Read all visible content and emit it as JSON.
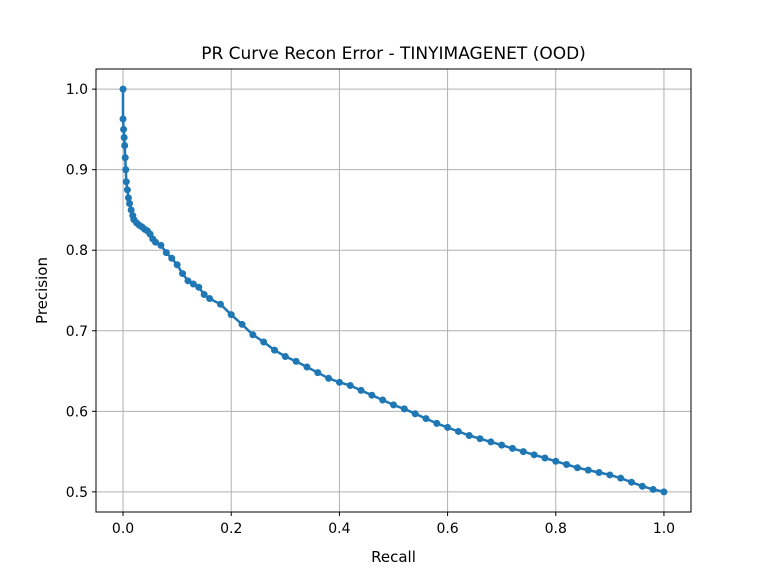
{
  "chart_data": {
    "type": "line",
    "title": "PR Curve Recon Error - TINYIMAGENET (OOD)",
    "xlabel": "Recall",
    "ylabel": "Precision",
    "xlim": [
      -0.05,
      1.05
    ],
    "ylim": [
      0.475,
      1.025
    ],
    "xticks": [
      0.0,
      0.2,
      0.4,
      0.6,
      0.8,
      1.0
    ],
    "xtick_labels": [
      "0.0",
      "0.2",
      "0.4",
      "0.6",
      "0.8",
      "1.0"
    ],
    "yticks": [
      0.5,
      0.6,
      0.7,
      0.8,
      0.9,
      1.0
    ],
    "ytick_labels": [
      "0.5",
      "0.6",
      "0.7",
      "0.8",
      "0.9",
      "1.0"
    ],
    "grid": true,
    "markers": true,
    "series": [
      {
        "color": "#1f77b4",
        "x": [
          0.0,
          0.0,
          0.001,
          0.002,
          0.003,
          0.004,
          0.005,
          0.006,
          0.008,
          0.01,
          0.012,
          0.015,
          0.018,
          0.02,
          0.025,
          0.03,
          0.035,
          0.04,
          0.045,
          0.05,
          0.055,
          0.06,
          0.07,
          0.08,
          0.09,
          0.1,
          0.11,
          0.12,
          0.13,
          0.14,
          0.15,
          0.16,
          0.18,
          0.2,
          0.22,
          0.24,
          0.26,
          0.28,
          0.3,
          0.32,
          0.34,
          0.36,
          0.38,
          0.4,
          0.42,
          0.44,
          0.46,
          0.48,
          0.5,
          0.52,
          0.54,
          0.56,
          0.58,
          0.6,
          0.62,
          0.64,
          0.66,
          0.68,
          0.7,
          0.72,
          0.74,
          0.76,
          0.78,
          0.8,
          0.82,
          0.84,
          0.86,
          0.88,
          0.9,
          0.92,
          0.94,
          0.96,
          0.98,
          1.0
        ],
        "y": [
          1.0,
          0.963,
          0.95,
          0.94,
          0.93,
          0.915,
          0.9,
          0.885,
          0.875,
          0.865,
          0.858,
          0.85,
          0.843,
          0.838,
          0.834,
          0.831,
          0.829,
          0.826,
          0.824,
          0.82,
          0.814,
          0.81,
          0.806,
          0.797,
          0.79,
          0.782,
          0.771,
          0.762,
          0.758,
          0.754,
          0.745,
          0.74,
          0.733,
          0.72,
          0.708,
          0.695,
          0.686,
          0.676,
          0.668,
          0.662,
          0.655,
          0.648,
          0.641,
          0.636,
          0.632,
          0.626,
          0.62,
          0.614,
          0.608,
          0.603,
          0.597,
          0.591,
          0.585,
          0.58,
          0.575,
          0.57,
          0.566,
          0.562,
          0.558,
          0.554,
          0.55,
          0.546,
          0.542,
          0.538,
          0.534,
          0.53,
          0.527,
          0.524,
          0.521,
          0.517,
          0.512,
          0.507,
          0.503,
          0.5
        ]
      }
    ]
  }
}
